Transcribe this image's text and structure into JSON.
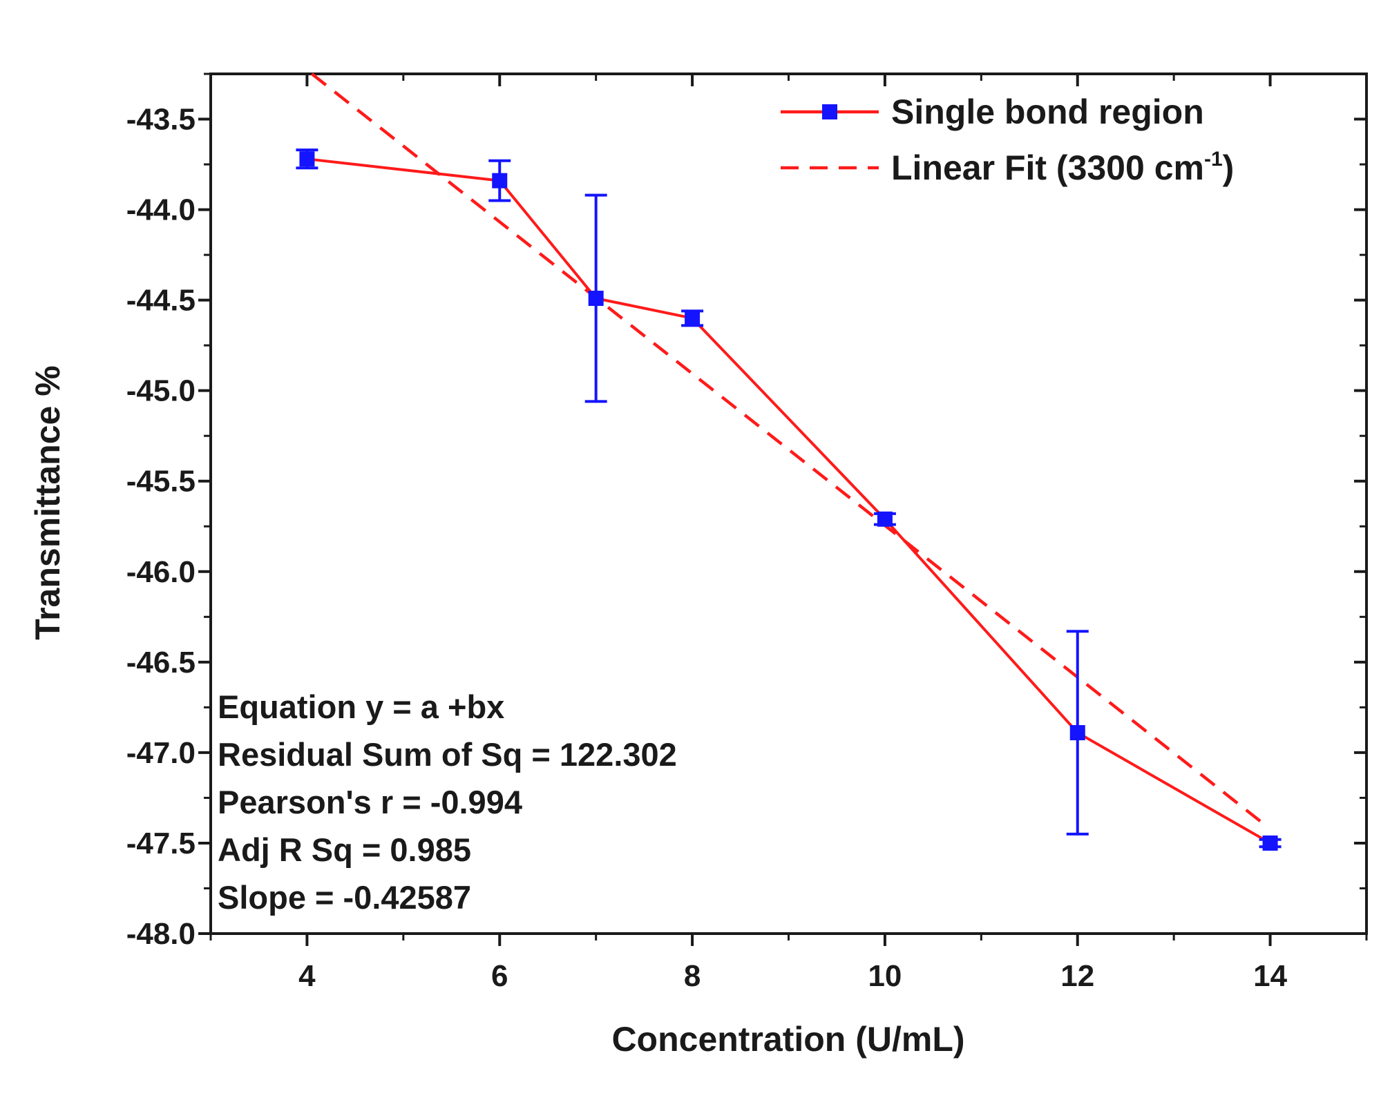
{
  "chart_data": {
    "type": "line",
    "xlabel": "Concentration (U/mL)",
    "ylabel": "Transmittance %",
    "xlim": [
      3,
      15
    ],
    "ylim": [
      -48.0,
      -43.25
    ],
    "x_ticks": [
      4,
      6,
      8,
      10,
      12,
      14
    ],
    "x_tick_labels": [
      "4",
      "6",
      "8",
      "10",
      "12",
      "14"
    ],
    "x_minor_ticks": [
      3,
      5,
      7,
      9,
      11,
      13,
      15
    ],
    "y_ticks": [
      -43.5,
      -44.0,
      -44.5,
      -45.0,
      -45.5,
      -46.0,
      -46.5,
      -47.0,
      -47.5,
      -48.0
    ],
    "y_tick_labels": [
      "-43.5",
      "-44.0",
      "-44.5",
      "-45.0",
      "-45.5",
      "-46.0",
      "-46.5",
      "-47.0",
      "-47.5",
      "-48.0"
    ],
    "y_minor_ticks": [
      -43.25,
      -43.75,
      -44.25,
      -44.75,
      -45.25,
      -45.75,
      -46.25,
      -46.75,
      -47.25,
      -47.75
    ],
    "series": [
      {
        "name": "Single bond region",
        "style": "solid-with-markers",
        "line_color": "#ff1a1a",
        "marker_color": "#1414ff",
        "x": [
          4,
          6,
          7,
          8,
          10,
          12,
          14
        ],
        "y": [
          -43.72,
          -43.84,
          -44.49,
          -44.6,
          -45.71,
          -46.89,
          -47.5
        ],
        "error": [
          0.05,
          0.11,
          0.57,
          0.04,
          0.03,
          0.56,
          0.02
        ]
      },
      {
        "name": "Linear Fit (3300 cm",
        "name_superscript": "-1",
        "name_suffix": ")",
        "style": "dashed",
        "line_color": "#ff1a1a",
        "x": [
          4.05,
          13.9
        ],
        "y": [
          -43.25,
          -47.38
        ]
      }
    ],
    "legend": {
      "placement": "top-right"
    },
    "annotations": [
      "Equation y = a +bx",
      "Residual Sum of Sq = 122.302",
      "Pearson's r = -0.994",
      "Adj R Sq = 0.985",
      "Slope = -0.42587"
    ],
    "grid": false
  }
}
